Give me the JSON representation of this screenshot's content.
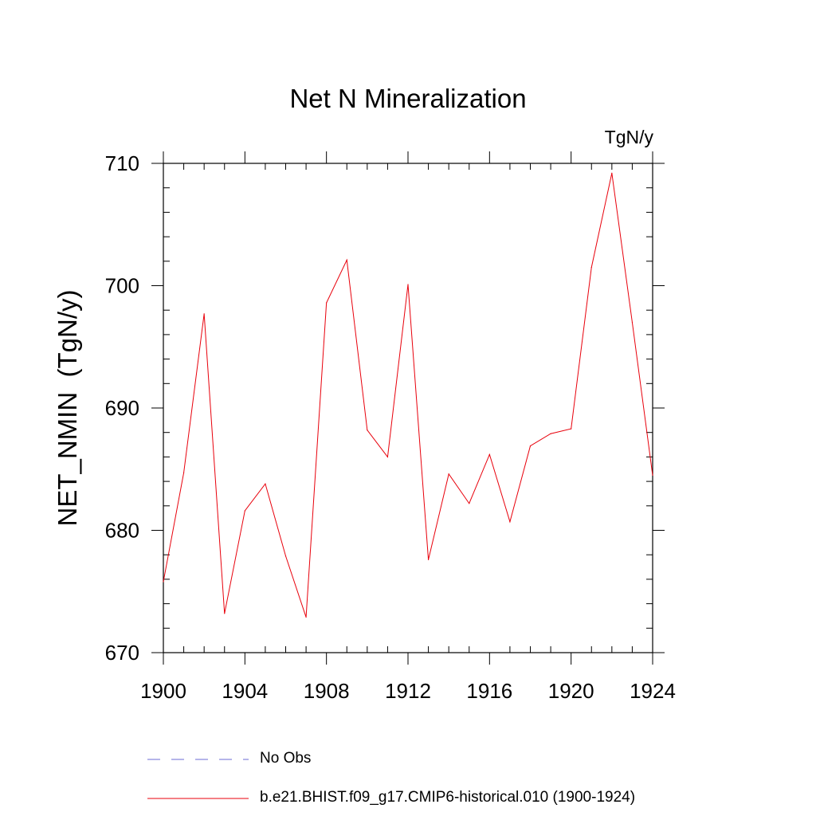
{
  "chart_data": {
    "type": "line",
    "title": "Net N Mineralization",
    "units_label": "TgN/y",
    "ylabel": "NET_NMIN  (TgN/y)",
    "xlabel": "",
    "xlim": [
      1900,
      1924
    ],
    "ylim": [
      670,
      710
    ],
    "x_ticks": [
      1900,
      1904,
      1908,
      1912,
      1916,
      1920,
      1924
    ],
    "y_ticks": [
      670,
      680,
      690,
      700,
      710
    ],
    "x_minor_step": 1,
    "y_minor_step": 2,
    "grid": false,
    "legend_position": "bottom",
    "series": [
      {
        "name": "b.e21.BHIST.f09_g17.CMIP6-historical.010 (1900-1924)",
        "color": "#e8000b",
        "style": "solid",
        "x": [
          1900,
          1901,
          1902,
          1903,
          1904,
          1905,
          1906,
          1907,
          1908,
          1909,
          1910,
          1911,
          1912,
          1913,
          1914,
          1915,
          1916,
          1917,
          1918,
          1919,
          1920,
          1921,
          1922,
          1923,
          1924
        ],
        "y": [
          675.8,
          684.7,
          697.7,
          673.2,
          681.6,
          683.8,
          677.9,
          672.9,
          698.6,
          702.1,
          688.2,
          686.0,
          700.1,
          677.6,
          684.6,
          682.2,
          686.2,
          680.7,
          686.9,
          687.9,
          688.3,
          701.5,
          709.2,
          697.0,
          684.5
        ]
      }
    ],
    "legend": [
      {
        "label": "No Obs",
        "color": "#6b6bd6",
        "style": "dashed"
      },
      {
        "label": "b.e21.BHIST.f09_g17.CMIP6-historical.010 (1900-1924)",
        "color": "#e8000b",
        "style": "solid"
      }
    ]
  }
}
